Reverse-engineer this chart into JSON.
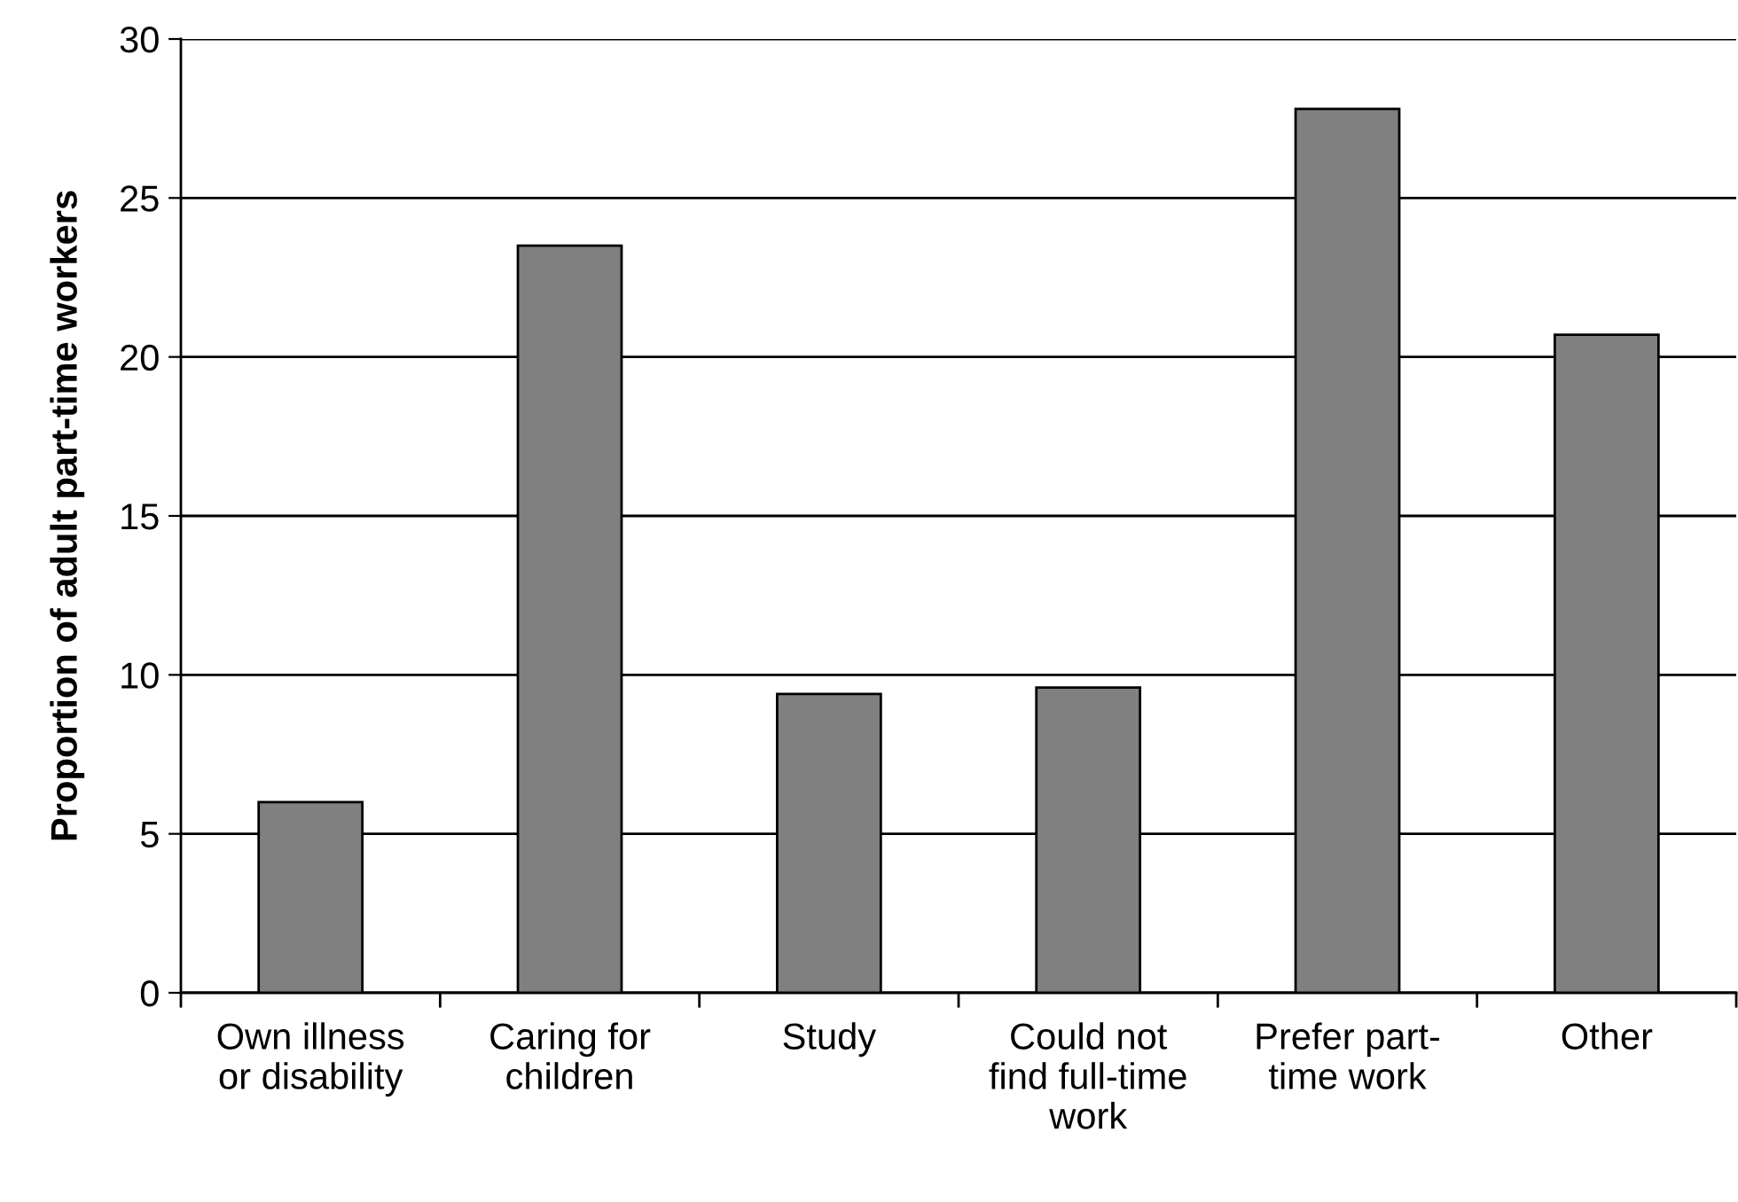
{
  "chart_data": {
    "type": "bar",
    "ylabel": "Proportion of adult part-time workers",
    "categories": [
      "Own illness\nor disability",
      "Caring for\nchildren",
      "Study",
      "Could not\nfind full-time\nwork",
      "Prefer part-\ntime work",
      "Other"
    ],
    "values": [
      6.0,
      23.5,
      9.4,
      9.6,
      27.8,
      20.7
    ],
    "color": "#808080",
    "ylim": [
      0,
      30
    ],
    "yticks": [
      0,
      5,
      10,
      15,
      20,
      25,
      30
    ],
    "grid": "y",
    "legend": false
  }
}
